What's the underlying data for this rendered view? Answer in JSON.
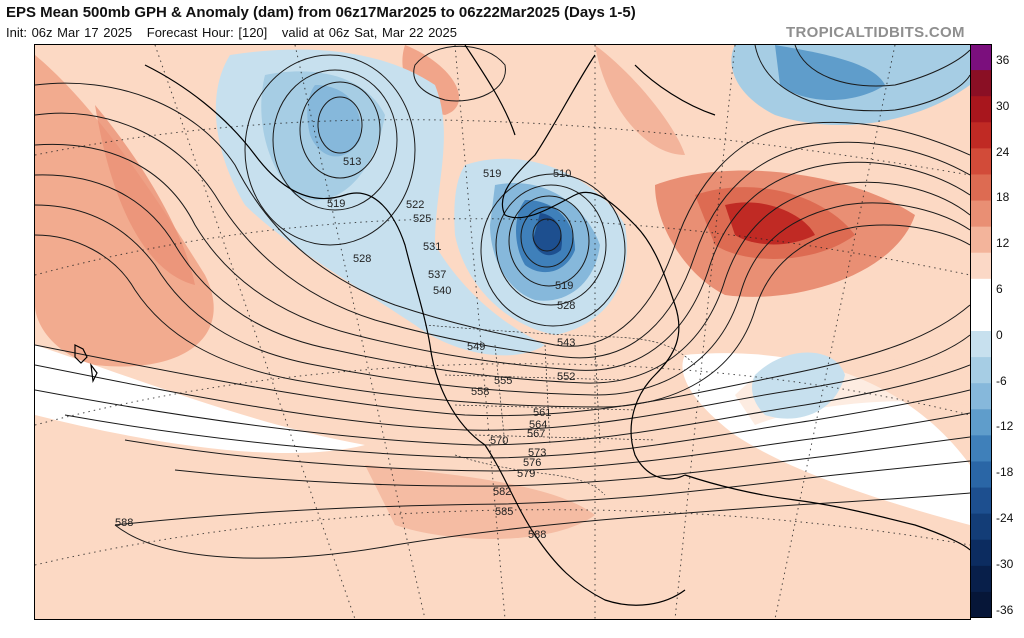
{
  "header": {
    "title": "EPS Mean 500mb GPH & Anomaly (dam) from 06z17Mar2025 to 06z22Mar2025 (Days 1-5)",
    "init": "Init: 06z Mar 17 2025",
    "forecast_hour": "Forecast Hour: [120]",
    "valid": "valid at 06z Sat, Mar 22 2025"
  },
  "brand": "TROPICALTIDBITS.COM",
  "colorbar": {
    "ticks": [
      "36",
      "30",
      "24",
      "18",
      "12",
      "6",
      "0",
      "-6",
      "-12",
      "-18",
      "-24",
      "-30",
      "-36"
    ],
    "colors": [
      "#7b0f7d",
      "#8a0f24",
      "#a8161d",
      "#c02a24",
      "#d24b39",
      "#dd6b52",
      "#e98f74",
      "#f3b49b",
      "#fbd8c6",
      "#ffffff",
      "#ffffff",
      "#c7e0ee",
      "#a6cde4",
      "#86b8db",
      "#5f9dcb",
      "#3f80ba",
      "#2a66a6",
      "#1d4f8f",
      "#133d77",
      "#0c2c60",
      "#081f4a",
      "#061638"
    ]
  },
  "contour_labels": [
    "513",
    "519",
    "522",
    "525",
    "528",
    "531",
    "537",
    "540",
    "519",
    "510",
    "519",
    "528",
    "549",
    "543",
    "552",
    "555",
    "558",
    "561",
    "564",
    "567",
    "570",
    "573",
    "576",
    "579",
    "582",
    "585",
    "588",
    "588"
  ]
}
